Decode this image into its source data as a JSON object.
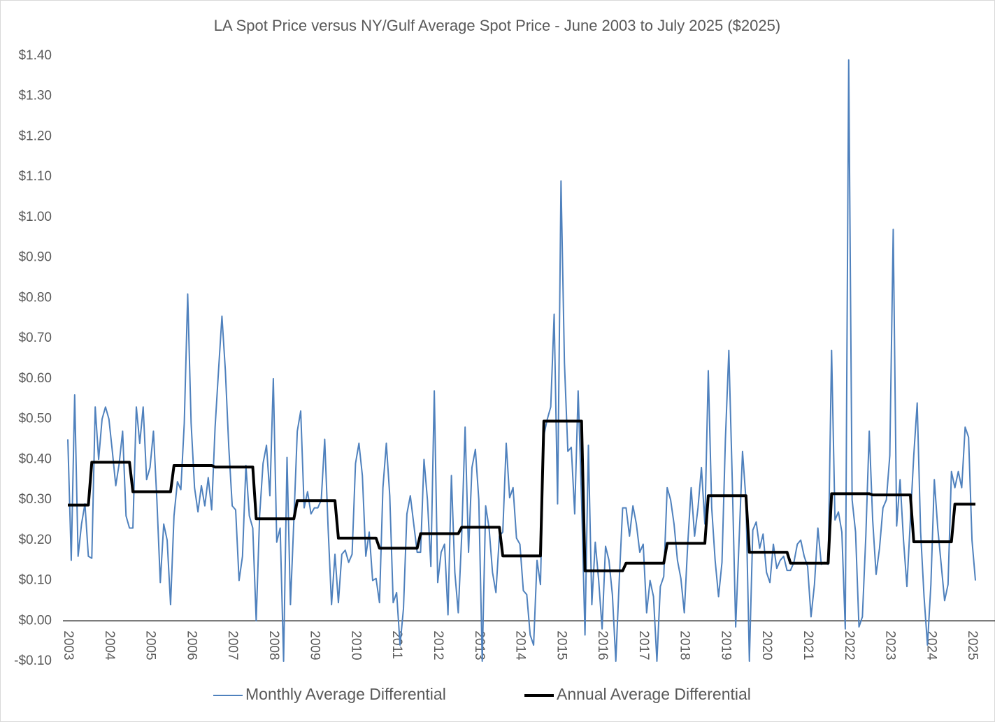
{
  "chart_data": {
    "type": "line",
    "title": "LA Spot Price versus NY/Gulf Average Spot Price - June 2003 to July 2025 ($2025)",
    "categories": [
      "2003",
      null,
      null,
      null,
      null,
      null,
      null,
      null,
      null,
      null,
      null,
      null,
      "2004",
      null,
      null,
      null,
      null,
      null,
      null,
      null,
      null,
      null,
      null,
      null,
      "2005",
      null,
      null,
      null,
      null,
      null,
      null,
      null,
      null,
      null,
      null,
      null,
      "2006",
      null,
      null,
      null,
      null,
      null,
      null,
      null,
      null,
      null,
      null,
      null,
      "2007",
      null,
      null,
      null,
      null,
      null,
      null,
      null,
      null,
      null,
      null,
      null,
      "2008",
      null,
      null,
      null,
      null,
      null,
      null,
      null,
      null,
      null,
      null,
      null,
      "2009",
      null,
      null,
      null,
      null,
      null,
      null,
      null,
      null,
      null,
      null,
      null,
      "2010",
      null,
      null,
      null,
      null,
      null,
      null,
      null,
      null,
      null,
      null,
      null,
      "2011",
      null,
      null,
      null,
      null,
      null,
      null,
      null,
      null,
      null,
      null,
      null,
      "2012",
      null,
      null,
      null,
      null,
      null,
      null,
      null,
      null,
      null,
      null,
      null,
      "2013",
      null,
      null,
      null,
      null,
      null,
      null,
      null,
      null,
      null,
      null,
      null,
      "2014",
      null,
      null,
      null,
      null,
      null,
      null,
      null,
      null,
      null,
      null,
      null,
      "2015",
      null,
      null,
      null,
      null,
      null,
      null,
      null,
      null,
      null,
      null,
      null,
      "2016",
      null,
      null,
      null,
      null,
      null,
      null,
      null,
      null,
      null,
      null,
      null,
      "2017",
      null,
      null,
      null,
      null,
      null,
      null,
      null,
      null,
      null,
      null,
      null,
      "2018",
      null,
      null,
      null,
      null,
      null,
      null,
      null,
      null,
      null,
      null,
      null,
      "2019",
      null,
      null,
      null,
      null,
      null,
      null,
      null,
      null,
      null,
      null,
      null,
      "2020",
      null,
      null,
      null,
      null,
      null,
      null,
      null,
      null,
      null,
      null,
      null,
      "2021",
      null,
      null,
      null,
      null,
      null,
      null,
      null,
      null,
      null,
      null,
      null,
      "2022",
      null,
      null,
      null,
      null,
      null,
      null,
      null,
      null,
      null,
      null,
      null,
      "2023",
      null,
      null,
      null,
      null,
      null,
      null,
      null,
      null,
      null,
      null,
      null,
      "2024",
      null,
      null,
      null,
      null,
      null,
      null,
      null,
      null,
      null,
      null,
      null,
      "2025",
      null
    ],
    "series": [
      {
        "name": "Monthly Average Differential",
        "color": "#4f81bd",
        "values": [
          0.45,
          0.15,
          0.56,
          0.16,
          0.24,
          0.29,
          0.16,
          0.155,
          0.53,
          0.4,
          0.5,
          0.53,
          0.5,
          0.42,
          0.335,
          0.39,
          0.47,
          0.26,
          0.23,
          0.23,
          0.53,
          0.44,
          0.53,
          0.35,
          0.38,
          0.47,
          0.3,
          0.095,
          0.24,
          0.2,
          0.04,
          0.26,
          0.345,
          0.325,
          0.49,
          0.81,
          0.49,
          0.33,
          0.27,
          0.335,
          0.285,
          0.355,
          0.275,
          0.48,
          0.62,
          0.755,
          0.62,
          0.43,
          0.285,
          0.275,
          0.1,
          0.16,
          0.385,
          0.26,
          0.23,
          0.0,
          0.26,
          0.39,
          0.435,
          0.31,
          0.6,
          0.195,
          0.23,
          -0.1,
          0.405,
          0.04,
          0.25,
          0.47,
          0.52,
          0.28,
          0.32,
          0.265,
          0.28,
          0.28,
          0.3,
          0.45,
          0.23,
          0.04,
          0.165,
          0.045,
          0.165,
          0.175,
          0.145,
          0.165,
          0.39,
          0.44,
          0.36,
          0.16,
          0.22,
          0.1,
          0.105,
          0.045,
          0.33,
          0.44,
          0.31,
          0.045,
          0.07,
          -0.06,
          0.03,
          0.265,
          0.31,
          0.24,
          0.17,
          0.17,
          0.4,
          0.3,
          0.135,
          0.57,
          0.095,
          0.17,
          0.19,
          0.015,
          0.36,
          0.12,
          0.02,
          0.21,
          0.48,
          0.17,
          0.38,
          0.425,
          0.3,
          -0.1,
          0.285,
          0.23,
          0.12,
          0.07,
          0.21,
          0.22,
          0.44,
          0.305,
          0.33,
          0.205,
          0.19,
          0.075,
          0.065,
          -0.035,
          -0.06,
          0.15,
          0.09,
          0.46,
          0.5,
          0.53,
          0.76,
          0.29,
          1.09,
          0.64,
          0.42,
          0.43,
          0.265,
          0.57,
          0.3,
          -0.035,
          0.435,
          0.04,
          0.195,
          0.1,
          -0.02,
          0.185,
          0.15,
          0.065,
          -0.1,
          0.1,
          0.28,
          0.28,
          0.21,
          0.285,
          0.24,
          0.17,
          0.19,
          0.02,
          0.1,
          0.06,
          -0.1,
          0.085,
          0.11,
          0.33,
          0.3,
          0.24,
          0.15,
          0.105,
          0.02,
          0.19,
          0.33,
          0.21,
          0.28,
          0.38,
          0.24,
          0.62,
          0.28,
          0.15,
          0.06,
          0.145,
          0.45,
          0.67,
          0.35,
          -0.015,
          0.2,
          0.42,
          0.3,
          -0.1,
          0.225,
          0.245,
          0.18,
          0.215,
          0.12,
          0.095,
          0.19,
          0.13,
          0.15,
          0.16,
          0.125,
          0.125,
          0.145,
          0.19,
          0.2,
          0.16,
          0.135,
          0.01,
          0.09,
          0.23,
          0.14,
          0.145,
          0.14,
          0.67,
          0.25,
          0.27,
          0.22,
          -0.02,
          1.39,
          0.3,
          0.22,
          -0.015,
          0.01,
          0.21,
          0.47,
          0.25,
          0.115,
          0.18,
          0.28,
          0.3,
          0.41,
          0.97,
          0.235,
          0.35,
          0.2,
          0.085,
          0.25,
          0.41,
          0.54,
          0.22,
          0.06,
          -0.06,
          0.09,
          0.35,
          0.23,
          0.14,
          0.05,
          0.09,
          0.37,
          0.33,
          0.37,
          0.33,
          0.48,
          0.455,
          0.2,
          0.1
        ]
      },
      {
        "name": "Annual Average Differential",
        "color": "#000000",
        "values": [
          0.287,
          0.287,
          0.287,
          0.287,
          0.287,
          0.287,
          0.287,
          0.393,
          0.393,
          0.393,
          0.393,
          0.393,
          0.393,
          0.393,
          0.393,
          0.393,
          0.393,
          0.393,
          0.393,
          0.32,
          0.32,
          0.32,
          0.32,
          0.32,
          0.32,
          0.32,
          0.32,
          0.32,
          0.32,
          0.32,
          0.32,
          0.385,
          0.385,
          0.385,
          0.385,
          0.385,
          0.385,
          0.385,
          0.385,
          0.385,
          0.385,
          0.385,
          0.385,
          0.381,
          0.381,
          0.381,
          0.381,
          0.381,
          0.381,
          0.381,
          0.381,
          0.381,
          0.381,
          0.381,
          0.381,
          0.253,
          0.253,
          0.253,
          0.253,
          0.253,
          0.253,
          0.253,
          0.253,
          0.253,
          0.253,
          0.253,
          0.253,
          0.298,
          0.298,
          0.298,
          0.298,
          0.298,
          0.298,
          0.298,
          0.298,
          0.298,
          0.298,
          0.298,
          0.298,
          0.205,
          0.205,
          0.205,
          0.205,
          0.205,
          0.205,
          0.205,
          0.205,
          0.205,
          0.205,
          0.205,
          0.205,
          0.18,
          0.18,
          0.18,
          0.18,
          0.18,
          0.18,
          0.18,
          0.18,
          0.18,
          0.18,
          0.18,
          0.18,
          0.216,
          0.216,
          0.216,
          0.216,
          0.216,
          0.216,
          0.216,
          0.216,
          0.216,
          0.216,
          0.216,
          0.216,
          0.232,
          0.232,
          0.232,
          0.232,
          0.232,
          0.232,
          0.232,
          0.232,
          0.232,
          0.232,
          0.232,
          0.232,
          0.161,
          0.161,
          0.161,
          0.161,
          0.161,
          0.161,
          0.161,
          0.161,
          0.161,
          0.161,
          0.161,
          0.161,
          0.495,
          0.495,
          0.495,
          0.495,
          0.495,
          0.495,
          0.495,
          0.495,
          0.495,
          0.495,
          0.495,
          0.495,
          0.124,
          0.124,
          0.124,
          0.124,
          0.124,
          0.124,
          0.124,
          0.124,
          0.124,
          0.124,
          0.124,
          0.124,
          0.143,
          0.143,
          0.143,
          0.143,
          0.143,
          0.143,
          0.143,
          0.143,
          0.143,
          0.143,
          0.143,
          0.143,
          0.192,
          0.192,
          0.192,
          0.192,
          0.192,
          0.192,
          0.192,
          0.192,
          0.192,
          0.192,
          0.192,
          0.192,
          0.31,
          0.31,
          0.31,
          0.31,
          0.31,
          0.31,
          0.31,
          0.31,
          0.31,
          0.31,
          0.31,
          0.31,
          0.17,
          0.17,
          0.17,
          0.17,
          0.17,
          0.17,
          0.17,
          0.17,
          0.17,
          0.17,
          0.17,
          0.17,
          0.143,
          0.143,
          0.143,
          0.143,
          0.143,
          0.143,
          0.143,
          0.143,
          0.143,
          0.143,
          0.143,
          0.143,
          0.315,
          0.315,
          0.315,
          0.315,
          0.315,
          0.315,
          0.315,
          0.315,
          0.315,
          0.315,
          0.315,
          0.315,
          0.312,
          0.312,
          0.312,
          0.312,
          0.312,
          0.312,
          0.312,
          0.312,
          0.312,
          0.312,
          0.312,
          0.312,
          0.196,
          0.196,
          0.196,
          0.196,
          0.196,
          0.196,
          0.196,
          0.196,
          0.196,
          0.196,
          0.196,
          0.196,
          0.289,
          0.289,
          0.289,
          0.289,
          0.289,
          0.289,
          0.289
        ]
      }
    ],
    "ylim": [
      -0.1,
      1.4
    ],
    "yticks": [
      {
        "value": -0.1,
        "label": "-$0.10"
      },
      {
        "value": 0,
        "label": "$0.00"
      },
      {
        "value": 0.1,
        "label": "$0.10"
      },
      {
        "value": 0.2,
        "label": "$0.20"
      },
      {
        "value": 0.3,
        "label": "$0.30"
      },
      {
        "value": 0.4,
        "label": "$0.40"
      },
      {
        "value": 0.5,
        "label": "$0.50"
      },
      {
        "value": 0.6,
        "label": "$0.60"
      },
      {
        "value": 0.7,
        "label": "$0.70"
      },
      {
        "value": 0.8,
        "label": "$0.80"
      },
      {
        "value": 0.9,
        "label": "$0.90"
      },
      {
        "value": 1.0,
        "label": "$1.00"
      },
      {
        "value": 1.1,
        "label": "$1.10"
      },
      {
        "value": 1.2,
        "label": "$1.20"
      },
      {
        "value": 1.3,
        "label": "$1.30"
      },
      {
        "value": 1.4,
        "label": "$1.40"
      }
    ],
    "grid": false,
    "legend": "bottom"
  }
}
